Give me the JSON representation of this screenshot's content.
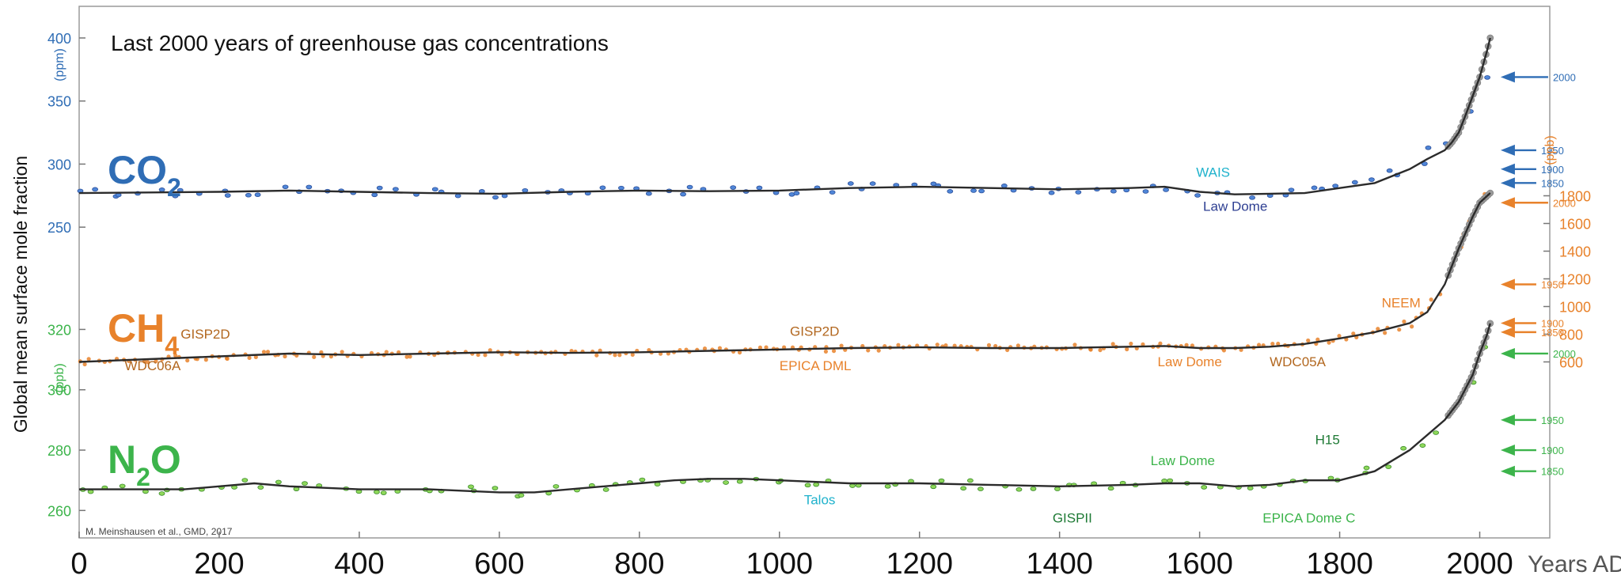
{
  "chart_data": {
    "type": "scatter",
    "title": "Last 2000 years of greenhouse gas concentrations",
    "credit": "M. Meinshausen et al., GMD, 2017",
    "ylabel": "Global mean surface mole fraction",
    "xlabel": "Years AD",
    "xlim": [
      0,
      2100
    ],
    "x_ticks": [
      "0",
      "200",
      "400",
      "600",
      "800",
      "1000",
      "1200",
      "1400",
      "1600",
      "1800",
      "2000"
    ],
    "grid": false,
    "gases": [
      {
        "name": "CO2",
        "main": "CO",
        "sub": "2",
        "tail": "",
        "color": "#2f6db5",
        "axis_side": "left",
        "unit": "(ppm)",
        "ticks": [
          "400",
          "350",
          "300",
          "250"
        ],
        "ylim": [
          220,
          405
        ],
        "curve": [
          [
            0,
            277
          ],
          [
            100,
            277.5
          ],
          [
            200,
            278
          ],
          [
            300,
            279
          ],
          [
            400,
            278
          ],
          [
            500,
            277
          ],
          [
            600,
            276.5
          ],
          [
            700,
            278
          ],
          [
            800,
            279
          ],
          [
            900,
            278.5
          ],
          [
            1000,
            279
          ],
          [
            1100,
            281
          ],
          [
            1200,
            282
          ],
          [
            1300,
            281
          ],
          [
            1400,
            280
          ],
          [
            1500,
            281
          ],
          [
            1550,
            282
          ],
          [
            1600,
            278
          ],
          [
            1650,
            276
          ],
          [
            1700,
            276.5
          ],
          [
            1750,
            277
          ],
          [
            1800,
            281
          ],
          [
            1850,
            285
          ],
          [
            1900,
            296
          ],
          [
            1925,
            304
          ],
          [
            1950,
            311
          ],
          [
            1960,
            317
          ],
          [
            1970,
            325
          ],
          [
            1980,
            339
          ],
          [
            1990,
            354
          ],
          [
            2000,
            369
          ],
          [
            2010,
            389
          ],
          [
            2015,
            400
          ]
        ],
        "labels": [
          {
            "text": "WAIS",
            "x": 1595,
            "y": 290,
            "color": "#1fb2cc"
          },
          {
            "text": "Law Dome",
            "x": 1605,
            "y": 263,
            "color": "#2e3f92"
          }
        ],
        "markers": [
          {
            "year": "2000",
            "value": 369
          },
          {
            "year": "1950",
            "value": 311
          },
          {
            "year": "1900",
            "value": 296
          },
          {
            "year": "1850",
            "value": 285
          }
        ]
      },
      {
        "name": "CH4",
        "main": "CH",
        "sub": "4",
        "tail": "",
        "color": "#e8822b",
        "axis_side": "right",
        "unit": "(ppb)",
        "ticks": [
          "1800",
          "1600",
          "1400",
          "1200",
          "1000",
          "800",
          "600"
        ],
        "ylim": [
          300,
          2100
        ],
        "curve": [
          [
            0,
            600
          ],
          [
            100,
            620
          ],
          [
            200,
            640
          ],
          [
            300,
            660
          ],
          [
            400,
            650
          ],
          [
            500,
            660
          ],
          [
            600,
            670
          ],
          [
            700,
            665
          ],
          [
            800,
            670
          ],
          [
            900,
            680
          ],
          [
            1000,
            690
          ],
          [
            1100,
            700
          ],
          [
            1200,
            705
          ],
          [
            1300,
            700
          ],
          [
            1400,
            700
          ],
          [
            1500,
            710
          ],
          [
            1550,
            715
          ],
          [
            1600,
            700
          ],
          [
            1650,
            700
          ],
          [
            1700,
            710
          ],
          [
            1750,
            730
          ],
          [
            1800,
            770
          ],
          [
            1850,
            815
          ],
          [
            1900,
            880
          ],
          [
            1925,
            960
          ],
          [
            1950,
            1160
          ],
          [
            1970,
            1420
          ],
          [
            1990,
            1650
          ],
          [
            2000,
            1750
          ],
          [
            2015,
            1820
          ]
        ],
        "labels": [
          {
            "text": "GISP2D",
            "x": 145,
            "y": 770,
            "color": "#b2671f"
          },
          {
            "text": "WDC06A",
            "x": 65,
            "y": 540,
            "color": "#b2671f"
          },
          {
            "text": "GISP2D",
            "x": 1015,
            "y": 790,
            "color": "#b2671f"
          },
          {
            "text": "EPICA DML",
            "x": 1000,
            "y": 540,
            "color": "#e8822b"
          },
          {
            "text": "Law Dome",
            "x": 1540,
            "y": 570,
            "color": "#e8822b"
          },
          {
            "text": "WDC05A",
            "x": 1700,
            "y": 570,
            "color": "#b2671f"
          },
          {
            "text": "NEEM",
            "x": 1860,
            "y": 995,
            "color": "#e8822b"
          }
        ],
        "markers": [
          {
            "year": "2000",
            "value": 1750
          },
          {
            "year": "1950",
            "value": 1160
          },
          {
            "year": "1900",
            "value": 880
          },
          {
            "year": "1850",
            "value": 815
          }
        ]
      },
      {
        "name": "N2O",
        "main": "N",
        "sub": "2",
        "tail": "O",
        "color": "#3cb44b",
        "axis_side": "left",
        "unit": "(ppb)",
        "ticks": [
          "320",
          "300",
          "280",
          "260"
        ],
        "ylim": [
          253,
          323
        ],
        "curve": [
          [
            0,
            267
          ],
          [
            100,
            267
          ],
          [
            150,
            267
          ],
          [
            200,
            268
          ],
          [
            250,
            269
          ],
          [
            300,
            268
          ],
          [
            400,
            267
          ],
          [
            500,
            267
          ],
          [
            600,
            266
          ],
          [
            650,
            266
          ],
          [
            700,
            267
          ],
          [
            800,
            269
          ],
          [
            850,
            270
          ],
          [
            900,
            270.5
          ],
          [
            950,
            270.5
          ],
          [
            1000,
            270
          ],
          [
            1100,
            269
          ],
          [
            1200,
            269
          ],
          [
            1300,
            268.5
          ],
          [
            1400,
            268
          ],
          [
            1500,
            268.5
          ],
          [
            1550,
            269
          ],
          [
            1600,
            269
          ],
          [
            1650,
            268
          ],
          [
            1700,
            268.5
          ],
          [
            1750,
            270
          ],
          [
            1800,
            270
          ],
          [
            1850,
            273
          ],
          [
            1900,
            280
          ],
          [
            1950,
            290
          ],
          [
            1970,
            296
          ],
          [
            1990,
            305
          ],
          [
            2000,
            312
          ],
          [
            2010,
            318
          ],
          [
            2015,
            322
          ]
        ],
        "labels": [
          {
            "text": "Talos",
            "x": 1035,
            "y": 262,
            "color": "#1fb2cc"
          },
          {
            "text": "Law Dome",
            "x": 1530,
            "y": 275,
            "color": "#3cb44b"
          },
          {
            "text": "H15",
            "x": 1765,
            "y": 282,
            "color": "#1e7a35"
          },
          {
            "text": "GISPII",
            "x": 1390,
            "y": 256,
            "color": "#1e7a35"
          },
          {
            "text": "EPICA Dome C",
            "x": 1690,
            "y": 256,
            "color": "#3cb44b"
          }
        ],
        "markers": [
          {
            "year": "2000",
            "value": 312
          },
          {
            "year": "1950",
            "value": 290
          },
          {
            "year": "1900",
            "value": 280
          },
          {
            "year": "1850",
            "value": 273
          }
        ]
      }
    ]
  }
}
